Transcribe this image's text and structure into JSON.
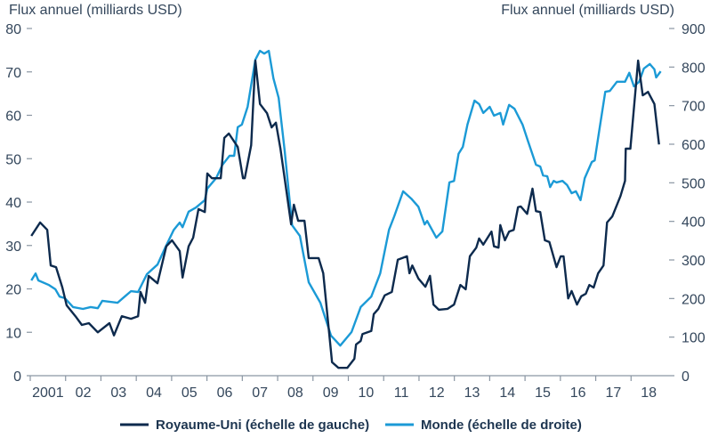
{
  "chart_data": {
    "type": "line",
    "title": "",
    "y_left_label": "Flux annuel (milliards USD)",
    "y_right_label": "Flux annuel (milliards USD)",
    "y_left_range": [
      0,
      80
    ],
    "y_right_range": [
      0,
      900
    ],
    "y_left_ticks": [
      "0",
      "10",
      "20",
      "30",
      "40",
      "50",
      "60",
      "70",
      "80"
    ],
    "y_right_ticks": [
      "0",
      "100",
      "200",
      "300",
      "400",
      "500",
      "600",
      "700",
      "800",
      "900"
    ],
    "x_range": [
      2001,
      2019
    ],
    "x_tick_labels": [
      "2001",
      "02",
      "03",
      "04",
      "05",
      "06",
      "07",
      "08",
      "09",
      "10",
      "11",
      "12",
      "13",
      "14",
      "15",
      "16",
      "17",
      "18"
    ],
    "grid": false,
    "legend_position": "bottom",
    "colors": {
      "uk": "#0d2a4d",
      "world": "#1b9ad6",
      "text": "#34475c"
    },
    "series": [
      {
        "name": "Royaume-Uni (échelle de gauche)",
        "axis": "left",
        "points": [
          [
            2001.03,
            32.2
          ],
          [
            2001.28,
            35.3
          ],
          [
            2001.48,
            33.6
          ],
          [
            2001.58,
            25.4
          ],
          [
            2001.73,
            25
          ],
          [
            2001.91,
            20.3
          ],
          [
            2002.03,
            16.2
          ],
          [
            2002.28,
            13.7
          ],
          [
            2002.46,
            11.7
          ],
          [
            2002.66,
            12.1
          ],
          [
            2002.91,
            10
          ],
          [
            2003.24,
            12.1
          ],
          [
            2003.37,
            9.3
          ],
          [
            2003.59,
            13.7
          ],
          [
            2003.85,
            13.1
          ],
          [
            2004.05,
            13.7
          ],
          [
            2004.12,
            19.3
          ],
          [
            2004.25,
            16.8
          ],
          [
            2004.35,
            23
          ],
          [
            2004.6,
            21.3
          ],
          [
            2004.85,
            29.8
          ],
          [
            2005.01,
            31.2
          ],
          [
            2005.23,
            28.7
          ],
          [
            2005.31,
            22.6
          ],
          [
            2005.48,
            29.8
          ],
          [
            2005.61,
            31.8
          ],
          [
            2005.76,
            38.4
          ],
          [
            2005.94,
            37.7
          ],
          [
            2006.01,
            46.6
          ],
          [
            2006.14,
            45.5
          ],
          [
            2006.39,
            45.5
          ],
          [
            2006.49,
            54.8
          ],
          [
            2006.62,
            55.8
          ],
          [
            2006.87,
            52.7
          ],
          [
            2007.02,
            45.5
          ],
          [
            2007.07,
            45.5
          ],
          [
            2007.25,
            53.1
          ],
          [
            2007.37,
            72.6
          ],
          [
            2007.5,
            62.6
          ],
          [
            2007.7,
            60.5
          ],
          [
            2007.83,
            57.2
          ],
          [
            2007.95,
            58.3
          ],
          [
            2008.08,
            52.3
          ],
          [
            2008.38,
            34.9
          ],
          [
            2008.46,
            39.4
          ],
          [
            2008.58,
            35.7
          ],
          [
            2008.76,
            35.7
          ],
          [
            2008.88,
            27.1
          ],
          [
            2009.16,
            27.1
          ],
          [
            2009.29,
            23.6
          ],
          [
            2009.54,
            3.1
          ],
          [
            2009.72,
            1.8
          ],
          [
            2009.97,
            1.8
          ],
          [
            2010.17,
            3.9
          ],
          [
            2010.22,
            7.2
          ],
          [
            2010.35,
            8
          ],
          [
            2010.4,
            9.6
          ],
          [
            2010.65,
            10.3
          ],
          [
            2010.72,
            14.2
          ],
          [
            2010.85,
            15.4
          ],
          [
            2011.03,
            18.5
          ],
          [
            2011.23,
            19.3
          ],
          [
            2011.4,
            26.7
          ],
          [
            2011.66,
            27.5
          ],
          [
            2011.73,
            23.6
          ],
          [
            2011.81,
            25.4
          ],
          [
            2011.98,
            22.4
          ],
          [
            2012.18,
            20.5
          ],
          [
            2012.31,
            23
          ],
          [
            2012.41,
            16.4
          ],
          [
            2012.56,
            15.2
          ],
          [
            2012.81,
            15.4
          ],
          [
            2012.99,
            16.4
          ],
          [
            2013.17,
            20.9
          ],
          [
            2013.32,
            19.9
          ],
          [
            2013.44,
            27.5
          ],
          [
            2013.62,
            29.5
          ],
          [
            2013.7,
            31.6
          ],
          [
            2013.82,
            30.2
          ],
          [
            2014.05,
            33.2
          ],
          [
            2014.12,
            29.8
          ],
          [
            2014.25,
            29.5
          ],
          [
            2014.3,
            34.7
          ],
          [
            2014.43,
            31.2
          ],
          [
            2014.55,
            33.2
          ],
          [
            2014.68,
            33.6
          ],
          [
            2014.8,
            38.8
          ],
          [
            2014.88,
            39
          ],
          [
            2015.06,
            37.3
          ],
          [
            2015.21,
            43.1
          ],
          [
            2015.31,
            37.9
          ],
          [
            2015.43,
            37.7
          ],
          [
            2015.56,
            31.2
          ],
          [
            2015.69,
            30.8
          ],
          [
            2015.89,
            25
          ],
          [
            2016.01,
            27.5
          ],
          [
            2016.09,
            27.5
          ],
          [
            2016.22,
            17.8
          ],
          [
            2016.32,
            19.5
          ],
          [
            2016.47,
            16.4
          ],
          [
            2016.59,
            18.3
          ],
          [
            2016.72,
            18.9
          ],
          [
            2016.82,
            20.9
          ],
          [
            2016.94,
            20.3
          ],
          [
            2017.07,
            23.6
          ],
          [
            2017.22,
            25.4
          ],
          [
            2017.32,
            35.3
          ],
          [
            2017.47,
            36.7
          ],
          [
            2017.7,
            41.4
          ],
          [
            2017.83,
            44.9
          ],
          [
            2017.85,
            52.3
          ],
          [
            2017.98,
            52.3
          ],
          [
            2018.2,
            72.6
          ],
          [
            2018.33,
            64.6
          ],
          [
            2018.48,
            65.4
          ],
          [
            2018.66,
            62.6
          ],
          [
            2018.79,
            53.3
          ]
        ]
      },
      {
        "name": "Monde (échelle de droite)",
        "axis": "right",
        "points": [
          [
            2001.03,
            247
          ],
          [
            2001.15,
            265
          ],
          [
            2001.23,
            247
          ],
          [
            2001.53,
            235
          ],
          [
            2001.71,
            224
          ],
          [
            2001.83,
            205
          ],
          [
            2001.98,
            201
          ],
          [
            2002.21,
            178
          ],
          [
            2002.49,
            173
          ],
          [
            2002.71,
            178
          ],
          [
            2002.91,
            175
          ],
          [
            2003.04,
            194
          ],
          [
            2003.47,
            189
          ],
          [
            2003.67,
            205
          ],
          [
            2003.85,
            219
          ],
          [
            2004.05,
            217
          ],
          [
            2004.3,
            263
          ],
          [
            2004.6,
            288
          ],
          [
            2004.8,
            328
          ],
          [
            2005.06,
            378
          ],
          [
            2005.23,
            397
          ],
          [
            2005.31,
            385
          ],
          [
            2005.48,
            425
          ],
          [
            2005.69,
            436
          ],
          [
            2005.94,
            455
          ],
          [
            2006.01,
            485
          ],
          [
            2006.26,
            512
          ],
          [
            2006.44,
            547
          ],
          [
            2006.64,
            570
          ],
          [
            2006.77,
            570
          ],
          [
            2006.87,
            644
          ],
          [
            2006.99,
            651
          ],
          [
            2007.15,
            697
          ],
          [
            2007.37,
            819
          ],
          [
            2007.5,
            842
          ],
          [
            2007.62,
            835
          ],
          [
            2007.75,
            842
          ],
          [
            2007.88,
            771
          ],
          [
            2008.03,
            720
          ],
          [
            2008.2,
            582
          ],
          [
            2008.41,
            390
          ],
          [
            2008.63,
            362
          ],
          [
            2008.88,
            242
          ],
          [
            2009.21,
            189
          ],
          [
            2009.51,
            104
          ],
          [
            2009.77,
            78
          ],
          [
            2010.09,
            113
          ],
          [
            2010.35,
            178
          ],
          [
            2010.65,
            205
          ],
          [
            2010.9,
            265
          ],
          [
            2011.15,
            378
          ],
          [
            2011.3,
            413
          ],
          [
            2011.55,
            478
          ],
          [
            2011.78,
            459
          ],
          [
            2011.98,
            438
          ],
          [
            2012.16,
            392
          ],
          [
            2012.23,
            401
          ],
          [
            2012.49,
            358
          ],
          [
            2012.66,
            374
          ],
          [
            2012.86,
            501
          ],
          [
            2012.99,
            505
          ],
          [
            2013.12,
            575
          ],
          [
            2013.24,
            593
          ],
          [
            2013.37,
            651
          ],
          [
            2013.57,
            713
          ],
          [
            2013.7,
            704
          ],
          [
            2013.82,
            681
          ],
          [
            2014.0,
            697
          ],
          [
            2014.12,
            674
          ],
          [
            2014.3,
            681
          ],
          [
            2014.38,
            651
          ],
          [
            2014.55,
            702
          ],
          [
            2014.7,
            692
          ],
          [
            2014.93,
            651
          ],
          [
            2015.08,
            609
          ],
          [
            2015.31,
            547
          ],
          [
            2015.43,
            542
          ],
          [
            2015.51,
            519
          ],
          [
            2015.63,
            517
          ],
          [
            2015.71,
            489
          ],
          [
            2015.81,
            505
          ],
          [
            2015.89,
            501
          ],
          [
            2016.06,
            505
          ],
          [
            2016.19,
            494
          ],
          [
            2016.32,
            473
          ],
          [
            2016.44,
            478
          ],
          [
            2016.57,
            455
          ],
          [
            2016.69,
            512
          ],
          [
            2016.89,
            554
          ],
          [
            2016.97,
            558
          ],
          [
            2017.1,
            635
          ],
          [
            2017.27,
            736
          ],
          [
            2017.4,
            738
          ],
          [
            2017.6,
            762
          ],
          [
            2017.83,
            762
          ],
          [
            2017.95,
            785
          ],
          [
            2018.08,
            750
          ],
          [
            2018.23,
            762
          ],
          [
            2018.36,
            796
          ],
          [
            2018.53,
            808
          ],
          [
            2018.66,
            794
          ],
          [
            2018.71,
            773
          ],
          [
            2018.84,
            789
          ]
        ]
      }
    ]
  }
}
